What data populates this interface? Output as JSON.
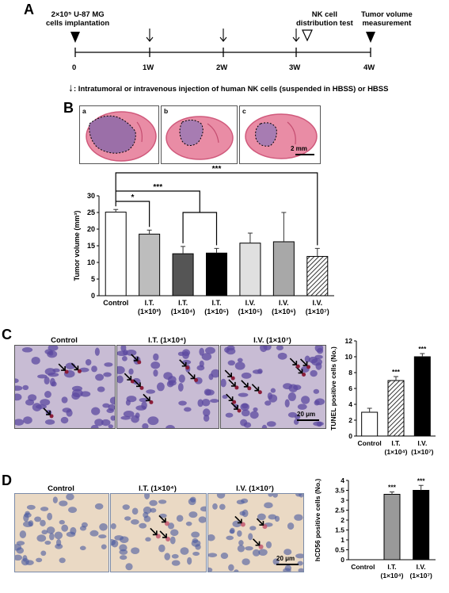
{
  "panelA": {
    "letter": "A",
    "implant_label_line1": "2×10⁵ U-87 MG",
    "implant_label_line2": "cells implantation",
    "nk_label_line1": "NK cell",
    "nk_label_line2": "distribution test",
    "tumor_label_line1": "Tumor volume",
    "tumor_label_line2": "measurement",
    "ticks": [
      "0",
      "1W",
      "2W",
      "3W",
      "4W"
    ],
    "legend_arrow": "↓",
    "legend_text": ": Intratumoral or intravenous injection of human NK cells (suspended in HBSS) or HBSS"
  },
  "panelB": {
    "letter": "B",
    "image_labels": [
      "a",
      "b",
      "c"
    ],
    "scale_bar": "2 mm",
    "sig_labels": [
      "***",
      "***",
      "*"
    ]
  },
  "panelC": {
    "letter": "C",
    "image_titles": [
      "Control",
      "I.T. (1×10⁴)",
      "I.V. (1×10⁷)"
    ],
    "scale_bar": "20 μm"
  },
  "panelD": {
    "letter": "D",
    "image_titles": [
      "Control",
      "I.T. (1×10⁴)",
      "I.V. (1×10⁷)"
    ],
    "scale_bar": "20 μm"
  },
  "colors": {
    "control": "#ffffff",
    "it_1e3": "#bdbdbd",
    "it_1e4": "#555555",
    "it_1e5": "#000000",
    "iv_1e5": "#e0e0e0",
    "iv_1e6": "#a8a8a8",
    "iv_1e7": "#888888",
    "tumor_purple": "#9b6fa8",
    "he_pink": "#e5708f"
  },
  "chart_data": [
    {
      "type": "bar",
      "title": "",
      "ylabel": "Tumor volume (mm³)",
      "ylim": [
        0,
        30
      ],
      "yticks": [
        "0",
        "5",
        "10",
        "15",
        "20",
        "25",
        "30"
      ],
      "categories": [
        "Control",
        "I.T.",
        "I.T.",
        "I.T.",
        "I.V.",
        "I.V.",
        "I.V."
      ],
      "categories_line2": [
        "",
        "(1×10³)",
        "(1×10⁴)",
        "(1×10⁵)",
        "(1×10⁵)",
        "(1×10⁶)",
        "(1×10⁷)"
      ],
      "values": [
        25.1,
        18.5,
        12.6,
        12.8,
        15.8,
        16.2,
        11.8
      ],
      "errors": [
        0.8,
        1.2,
        2.2,
        1.4,
        3.0,
        8.8,
        2.4
      ]
    },
    {
      "type": "bar",
      "title": "",
      "ylabel": "TUNEL positive cells (No.)",
      "ylim": [
        0,
        12
      ],
      "yticks": [
        "0",
        "2",
        "4",
        "6",
        "8",
        "10",
        "12"
      ],
      "categories": [
        "Control",
        "I.T.",
        "I.V."
      ],
      "categories_line2": [
        "",
        "(1×10⁴)",
        "(1×10⁷)"
      ],
      "values": [
        3.0,
        7.0,
        10.0
      ],
      "errors": [
        0.5,
        0.5,
        0.4
      ],
      "significance": [
        "",
        "***",
        "***"
      ]
    },
    {
      "type": "bar",
      "title": "",
      "ylabel": "hCD56 positive cells (No.)",
      "ylim": [
        0,
        4
      ],
      "yticks": [
        "0",
        "0.5",
        "1",
        "1.5",
        "2",
        "2.5",
        "3",
        "3.5",
        "4"
      ],
      "categories": [
        "Control",
        "I.T.",
        "I.V."
      ],
      "categories_line2": [
        "",
        "(1×10⁴)",
        "(1×10⁷)"
      ],
      "values": [
        0,
        3.3,
        3.5
      ],
      "errors": [
        0,
        0.12,
        0.25
      ],
      "significance": [
        "",
        "***",
        "***"
      ]
    }
  ]
}
